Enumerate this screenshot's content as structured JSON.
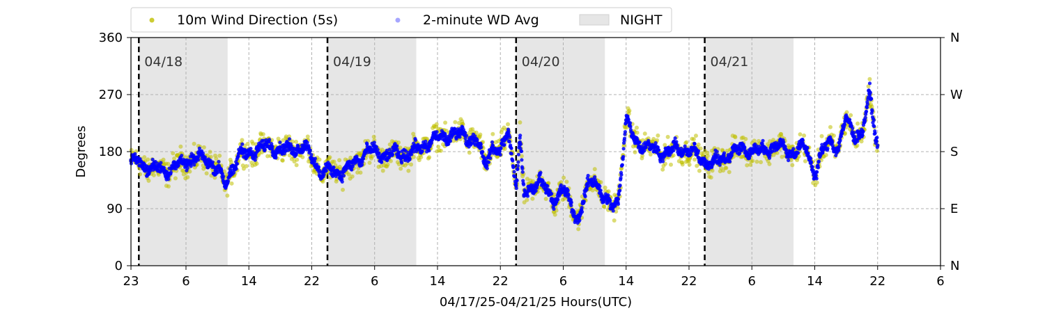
{
  "chart_data": {
    "type": "scatter",
    "title": "",
    "xlabel": "04/17/25-04/21/25  Hours(UTC)",
    "ylabel": "Degrees",
    "x_unit": "hours since 04/17/25 23:00 UTC",
    "xlim": [
      0,
      103
    ],
    "ylim": [
      0,
      360
    ],
    "x_ticks": [
      {
        "x": 0,
        "label": "23"
      },
      {
        "x": 7,
        "label": "6"
      },
      {
        "x": 15,
        "label": "14"
      },
      {
        "x": 23,
        "label": "22"
      },
      {
        "x": 31,
        "label": "6"
      },
      {
        "x": 39,
        "label": "14"
      },
      {
        "x": 47,
        "label": "22"
      },
      {
        "x": 55,
        "label": "6"
      },
      {
        "x": 63,
        "label": "14"
      },
      {
        "x": 71,
        "label": "22"
      },
      {
        "x": 79,
        "label": "6"
      },
      {
        "x": 87,
        "label": "14"
      },
      {
        "x": 95,
        "label": "22"
      },
      {
        "x": 103,
        "label": "6"
      }
    ],
    "y_ticks_left": [
      "0",
      "90",
      "180",
      "270",
      "360"
    ],
    "y_ticks_right": [
      "N",
      "E",
      "S",
      "W",
      "N"
    ],
    "grid": true,
    "legend_position": "top",
    "legend": [
      {
        "label": "10m Wind Direction (5s)",
        "color": "#bfbf00"
      },
      {
        "label": "2-minute WD Avg",
        "color": "#0000ff"
      },
      {
        "label": "NIGHT",
        "color": "#e6e6e6"
      }
    ],
    "night_bands": [
      [
        1,
        12.3
      ],
      [
        25,
        36.3
      ],
      [
        49,
        60.3
      ],
      [
        73,
        84.3
      ]
    ],
    "day_markers": [
      {
        "x": 1,
        "label": "04/18"
      },
      {
        "x": 25,
        "label": "04/19"
      },
      {
        "x": 49,
        "label": "04/20"
      },
      {
        "x": 73,
        "label": "04/21"
      }
    ],
    "series": [
      {
        "name": "10m Wind Direction (5s)",
        "color": "#bfbf00",
        "spread": 28,
        "x": [
          0,
          2,
          4,
          6,
          8,
          10,
          11,
          12,
          13,
          14,
          15,
          16,
          18,
          20,
          22,
          23,
          24,
          26,
          28,
          30,
          32,
          34,
          36,
          38,
          40,
          42,
          44,
          45,
          46,
          47,
          48,
          49,
          49.5,
          50,
          51,
          52,
          53,
          54,
          55,
          56,
          57,
          58,
          59,
          60,
          61,
          62,
          63,
          64,
          66,
          68,
          70,
          72,
          74,
          76,
          78,
          80,
          82,
          84,
          86,
          87,
          88,
          89,
          90,
          91,
          92,
          93,
          94,
          95
        ],
        "y": [
          165,
          157,
          150,
          158,
          170,
          165,
          155,
          125,
          158,
          178,
          175,
          185,
          188,
          182,
          190,
          170,
          150,
          148,
          155,
          182,
          175,
          175,
          180,
          195,
          205,
          208,
          198,
          160,
          190,
          175,
          215,
          130,
          195,
          110,
          125,
          135,
          115,
          105,
          120,
          95,
          75,
          120,
          140,
          110,
          90,
          105,
          230,
          200,
          185,
          178,
          185,
          175,
          160,
          175,
          185,
          180,
          190,
          180,
          185,
          145,
          178,
          200,
          185,
          230,
          210,
          205,
          270,
          190
        ]
      },
      {
        "name": "2-minute WD Avg",
        "color": "#0000ff",
        "spread": 12,
        "x": [
          0,
          2,
          4,
          6,
          8,
          10,
          11,
          12,
          13,
          14,
          15,
          16,
          18,
          20,
          22,
          23,
          24,
          26,
          28,
          30,
          32,
          34,
          36,
          38,
          40,
          42,
          44,
          45,
          46,
          47,
          48,
          49,
          49.5,
          50,
          51,
          52,
          53,
          54,
          55,
          56,
          57,
          58,
          59,
          60,
          61,
          62,
          63,
          64,
          66,
          68,
          70,
          72,
          74,
          76,
          78,
          80,
          82,
          84,
          86,
          87,
          88,
          89,
          90,
          91,
          92,
          93,
          94,
          95
        ],
        "y": [
          165,
          157,
          150,
          158,
          170,
          165,
          155,
          125,
          158,
          178,
          175,
          185,
          188,
          182,
          190,
          170,
          150,
          148,
          155,
          182,
          175,
          175,
          180,
          195,
          205,
          208,
          198,
          160,
          190,
          175,
          215,
          130,
          195,
          110,
          125,
          135,
          115,
          105,
          120,
          95,
          75,
          120,
          140,
          110,
          90,
          105,
          230,
          200,
          185,
          178,
          185,
          175,
          160,
          175,
          185,
          180,
          190,
          180,
          185,
          145,
          178,
          200,
          185,
          230,
          210,
          205,
          270,
          190
        ]
      }
    ]
  }
}
